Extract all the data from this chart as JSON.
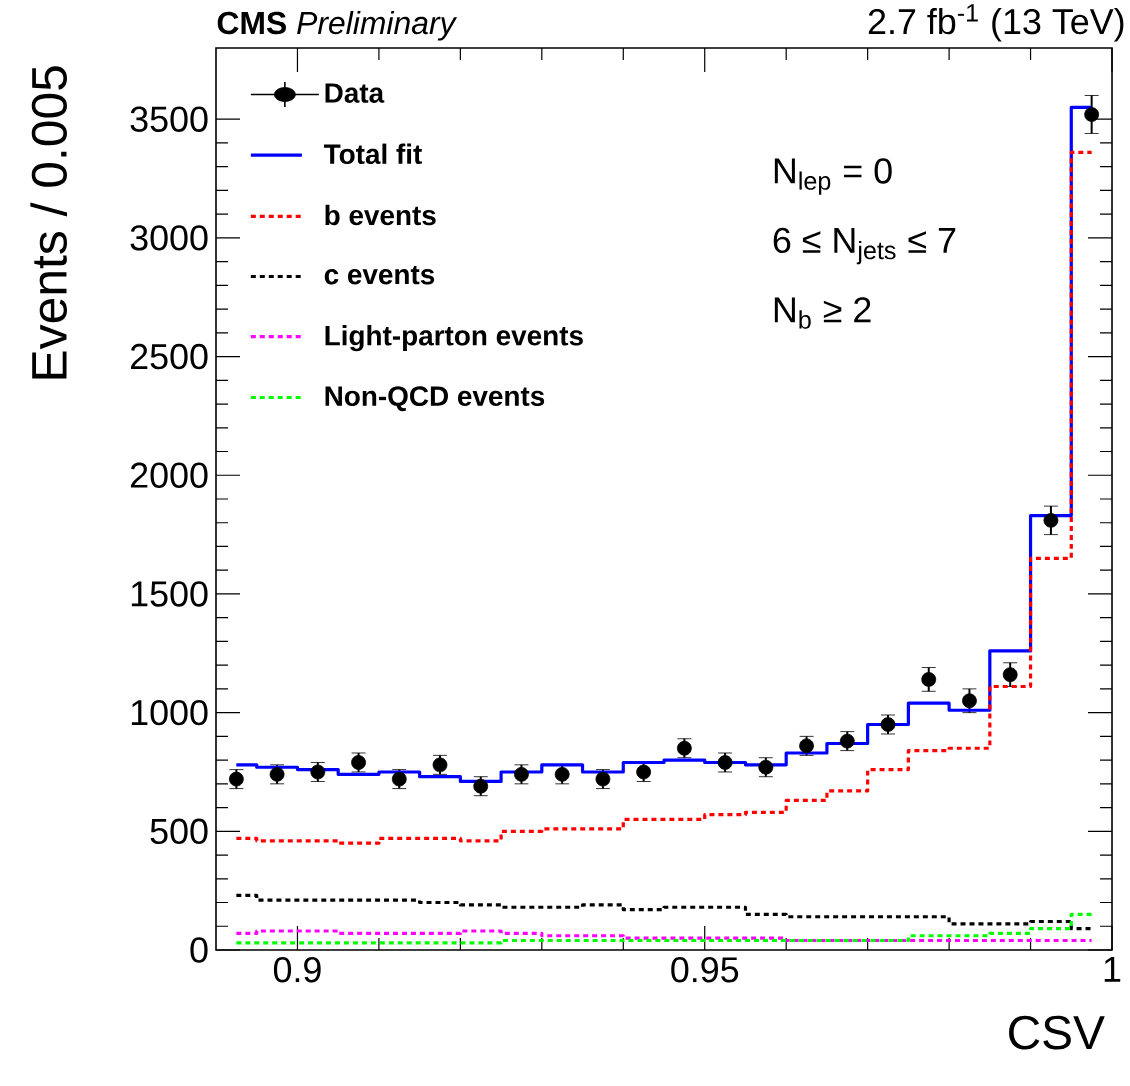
{
  "chart_data": {
    "type": "step",
    "title": "**CMS** *Preliminary*",
    "subtitle": "2.7 fb$^{-1}$ (13 TeV)",
    "xlabel": "CSV",
    "ylabel": "Events / 0.005",
    "annotations": [
      "N$_{lep}$ = 0",
      "6 ≤ N$_{jets}$ ≤ 7",
      "N$_{b}$ ≥ 2"
    ],
    "x": [
      0.8925,
      0.8975,
      0.9025,
      0.9075,
      0.9125,
      0.9175,
      0.9225,
      0.9275,
      0.9325,
      0.9375,
      0.9425,
      0.9475,
      0.9525,
      0.9575,
      0.9625,
      0.9675,
      0.9725,
      0.9775,
      0.9825,
      0.9875,
      0.9925,
      0.9975
    ],
    "series": [
      {
        "name": "Data",
        "type": "scatter",
        "marker": "circle",
        "color": "#000000",
        "values": [
          720,
          740,
          750,
          790,
          720,
          780,
          690,
          740,
          740,
          720,
          750,
          850,
          790,
          770,
          860,
          880,
          950,
          1140,
          1050,
          1160,
          1810,
          3520
        ],
        "errors": [
          40,
          40,
          40,
          40,
          40,
          40,
          40,
          40,
          40,
          40,
          40,
          40,
          40,
          40,
          40,
          40,
          40,
          50,
          50,
          50,
          60,
          80
        ]
      },
      {
        "name": "Total fit",
        "line_style": "solid",
        "color": "#0000ff",
        "values": [
          780,
          770,
          760,
          740,
          750,
          730,
          710,
          750,
          780,
          750,
          790,
          800,
          790,
          780,
          830,
          870,
          950,
          1040,
          1010,
          1260,
          1830,
          3550
        ]
      },
      {
        "name": "b events",
        "line_style": "dotted",
        "color": "#ff0000",
        "values": [
          470,
          460,
          460,
          450,
          470,
          470,
          460,
          500,
          510,
          510,
          550,
          550,
          570,
          580,
          630,
          670,
          760,
          840,
          850,
          1110,
          1650,
          3360
        ]
      },
      {
        "name": "c events",
        "line_style": "dotted",
        "color": "#000000",
        "values": [
          230,
          210,
          210,
          210,
          210,
          200,
          190,
          180,
          180,
          190,
          170,
          180,
          180,
          150,
          140,
          140,
          140,
          140,
          110,
          110,
          120,
          90
        ]
      },
      {
        "name": "Light-parton events",
        "line_style": "dotted",
        "color": "#ff00ff",
        "values": [
          70,
          80,
          80,
          70,
          70,
          70,
          80,
          70,
          60,
          60,
          50,
          50,
          50,
          50,
          40,
          40,
          40,
          40,
          40,
          40,
          40,
          40
        ]
      },
      {
        "name": "Non-QCD events",
        "line_style": "dotted",
        "color": "#00ff00",
        "values": [
          30,
          30,
          30,
          30,
          30,
          30,
          30,
          40,
          40,
          40,
          40,
          40,
          40,
          40,
          40,
          40,
          40,
          60,
          60,
          70,
          90,
          150
        ]
      }
    ],
    "xlim": [
      0.89,
      1.0
    ],
    "ylim": [
      0,
      3800
    ],
    "xticks": [
      0.9,
      0.95,
      1
    ],
    "yticks": [
      0,
      500,
      1000,
      1500,
      2000,
      2500,
      3000,
      3500
    ],
    "legend": "top left"
  }
}
